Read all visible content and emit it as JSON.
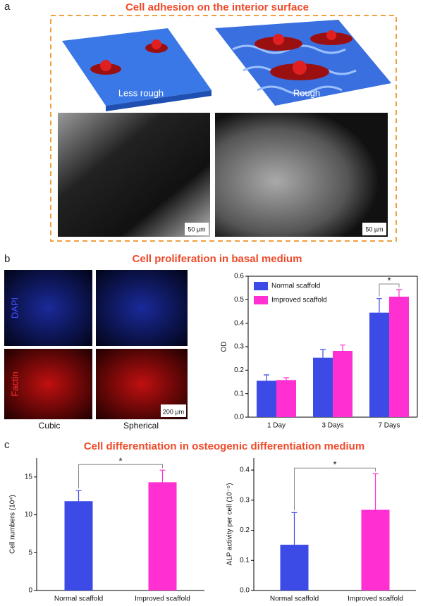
{
  "panel_a": {
    "label": "a",
    "title": "Cell adhesion on the interior surface",
    "surface_labels": [
      "Less rough",
      "Rough"
    ],
    "scale_bars": [
      "50 µm",
      "50 µm"
    ]
  },
  "panel_b": {
    "label": "b",
    "title": "Cell proliferation in basal medium",
    "stain_labels": [
      "DAPI",
      "Factin"
    ],
    "column_labels": [
      "Cubic",
      "Spherical"
    ],
    "scale_bar": "200 µm"
  },
  "panel_c": {
    "label": "c",
    "title": "Cell differentiation in osteogenic differentiation medium"
  },
  "chart_data": [
    {
      "type": "bar",
      "categories": [
        "1 Day",
        "3 Days",
        "7 Days"
      ],
      "series": [
        {
          "name": "Normal scaffold",
          "color": "#3d4be6",
          "values": [
            0.155,
            0.253,
            0.445
          ],
          "errors": [
            0.025,
            0.035,
            0.06
          ]
        },
        {
          "name": "Improved scaffold",
          "color": "#ff2fd2",
          "values": [
            0.158,
            0.282,
            0.513
          ],
          "errors": [
            0.01,
            0.025,
            0.03
          ]
        }
      ],
      "ylim": [
        0,
        0.6
      ],
      "yticks": [
        {
          "value": 0,
          "label": "0.0"
        },
        0.1,
        0.2,
        0.3,
        0.4,
        0.5,
        0.6
      ],
      "y_label": "OD",
      "legend": "upper left",
      "annotation": "*"
    },
    {
      "type": "bar",
      "categories": [
        "Normal scaffold",
        "Improved scaffold"
      ],
      "values": [
        11.8,
        14.3
      ],
      "errors": [
        1.4,
        1.6
      ],
      "colors": [
        "#3d4be6",
        "#ff2fd2"
      ],
      "ylim": [
        0,
        17.5
      ],
      "yticks": [
        0,
        5,
        10,
        15
      ],
      "y_label": "Cell numbers (10⁴)",
      "annotation": "*"
    },
    {
      "type": "bar",
      "categories": [
        "Normal scaffold",
        "Improved scaffold"
      ],
      "values": [
        0.152,
        0.268
      ],
      "errors": [
        0.107,
        0.12
      ],
      "colors": [
        "#3d4be6",
        "#ff2fd2"
      ],
      "ylim": [
        0,
        0.44
      ],
      "yticks": [
        {
          "value": 0,
          "label": "0.0"
        },
        0.1,
        0.2,
        0.3,
        0.4
      ],
      "y_label": "ALP activity per cell (10⁻⁵)",
      "annotation": "*"
    }
  ]
}
